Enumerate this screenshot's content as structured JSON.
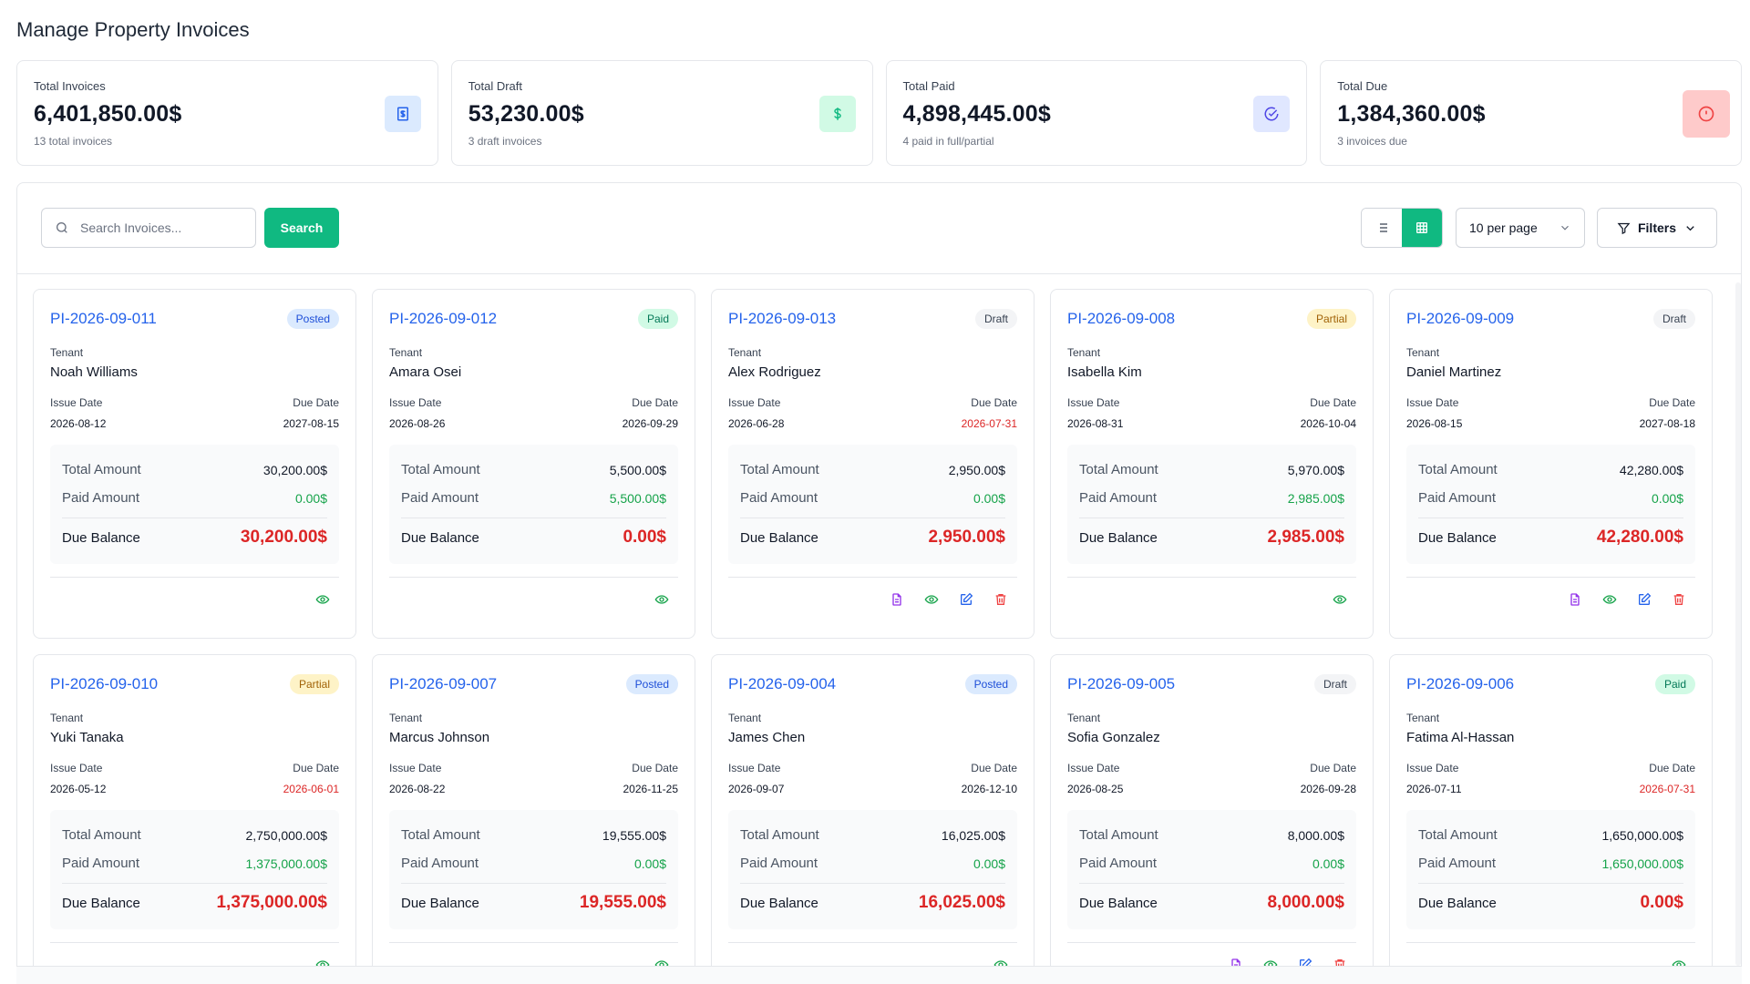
{
  "page": {
    "title": "Manage Property Invoices"
  },
  "stats": [
    {
      "label": "Total Invoices",
      "value": "6,401,850.00$",
      "sub": "13 total invoices",
      "icon": "invoice-icon"
    },
    {
      "label": "Total Draft",
      "value": "53,230.00$",
      "sub": "3 draft invoices",
      "icon": "dollar-icon"
    },
    {
      "label": "Total Paid",
      "value": "4,898,445.00$",
      "sub": "4 paid in full/partial",
      "icon": "check-circle-icon"
    },
    {
      "label": "Total Due",
      "value": "1,384,360.00$",
      "sub": "3 invoices due",
      "icon": "alert-circle-icon"
    }
  ],
  "toolbar": {
    "search_placeholder": "Search Invoices...",
    "search_label": "Search",
    "per_page": "10 per page",
    "filters_label": "Filters"
  },
  "labels": {
    "tenant": "Tenant",
    "issue_date": "Issue Date",
    "due_date": "Due Date",
    "total_amount": "Total Amount",
    "paid_amount": "Paid Amount",
    "due_balance": "Due Balance"
  },
  "invoices": [
    {
      "number": "PI-2026-09-011",
      "status": "Posted",
      "tenant": "Noah Williams",
      "issue_date": "2026-08-12",
      "due_date": "2027-08-15",
      "total": "30,200.00$",
      "paid": "0.00$",
      "due": "30,200.00$"
    },
    {
      "number": "PI-2026-09-012",
      "status": "Paid",
      "tenant": "Amara Osei",
      "issue_date": "2026-08-26",
      "due_date": "2026-09-29",
      "total": "5,500.00$",
      "paid": "5,500.00$",
      "due": "0.00$"
    },
    {
      "number": "PI-2026-09-013",
      "status": "Draft",
      "tenant": "Alex Rodriguez",
      "issue_date": "2026-06-28",
      "due_date": "2026-07-31",
      "total": "2,950.00$",
      "paid": "0.00$",
      "due": "2,950.00$"
    },
    {
      "number": "PI-2026-09-008",
      "status": "Partial",
      "tenant": "Isabella Kim",
      "issue_date": "2026-08-31",
      "due_date": "2026-10-04",
      "total": "5,970.00$",
      "paid": "2,985.00$",
      "due": "2,985.00$"
    },
    {
      "number": "PI-2026-09-009",
      "status": "Draft",
      "tenant": "Daniel Martinez",
      "issue_date": "2026-08-15",
      "due_date": "2027-08-18",
      "total": "42,280.00$",
      "paid": "0.00$",
      "due": "42,280.00$"
    },
    {
      "number": "PI-2026-09-010",
      "status": "Partial",
      "tenant": "Yuki Tanaka",
      "issue_date": "2026-05-12",
      "due_date": "2026-06-01",
      "total": "2,750,000.00$",
      "paid": "1,375,000.00$",
      "due": "1,375,000.00$"
    },
    {
      "number": "PI-2026-09-007",
      "status": "Posted",
      "tenant": "Marcus Johnson",
      "issue_date": "2026-08-22",
      "due_date": "2026-11-25",
      "total": "19,555.00$",
      "paid": "0.00$",
      "due": "19,555.00$"
    },
    {
      "number": "PI-2026-09-004",
      "status": "Posted",
      "tenant": "James Chen",
      "issue_date": "2026-09-07",
      "due_date": "2026-12-10",
      "total": "16,025.00$",
      "paid": "0.00$",
      "due": "16,025.00$"
    },
    {
      "number": "PI-2026-09-005",
      "status": "Draft",
      "tenant": "Sofia Gonzalez",
      "issue_date": "2026-08-25",
      "due_date": "2026-09-28",
      "total": "8,000.00$",
      "paid": "0.00$",
      "due": "8,000.00$"
    },
    {
      "number": "PI-2026-09-006",
      "status": "Paid",
      "tenant": "Fatima Al-Hassan",
      "issue_date": "2026-07-11",
      "due_date": "2026-07-31",
      "total": "1,650,000.00$",
      "paid": "1,650,000.00$",
      "due": "0.00$"
    }
  ],
  "overdue_indices": [
    2,
    5,
    9
  ],
  "actions": {
    "Posted": [
      "view-icon"
    ],
    "Paid": [
      "view-icon"
    ],
    "Partial": [
      "view-icon"
    ],
    "Draft": [
      "pdf-icon",
      "view-icon",
      "edit-icon",
      "delete-icon"
    ]
  },
  "colors": {
    "accent": "#10b981",
    "link": "#2563eb",
    "due": "#dc2626",
    "paid": "#16a34a"
  }
}
